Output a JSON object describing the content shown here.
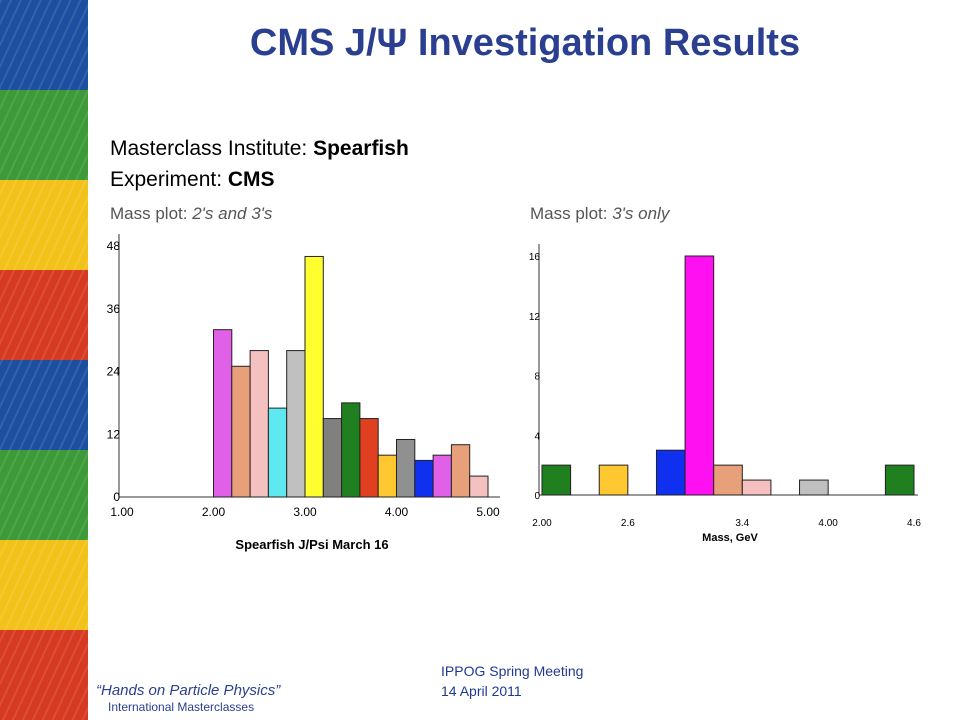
{
  "slide": {
    "title": "CMS J/Ψ Investigation Results",
    "institute_label": "Masterclass Institute: ",
    "institute_value": "Spearfish",
    "experiment_label": "Experiment: ",
    "experiment_value": "CMS",
    "footer_brand": "“Hands on Particle Physics”",
    "footer_brand_sub": "International Masterclasses",
    "footer_meeting": "IPPOG Spring Meeting",
    "footer_date": "14 April 2011"
  },
  "colors": {
    "title": "#2a3f8f",
    "strip": [
      "#1d4fa0",
      "#3d9a38",
      "#f2c21a",
      "#d73a22",
      "#1d4fa0",
      "#3d9a38",
      "#f2c21a",
      "#d73a22"
    ]
  },
  "chart_data": [
    {
      "type": "bar",
      "label_prefix": "Mass plot: ",
      "label_italic": "2's and 3's",
      "xlabel": "Spearfish J/Psi March 16",
      "x_ticks": [
        "1.00",
        "2.00",
        "3.00",
        "4.00",
        "5.00"
      ],
      "x_tick_values": [
        1.0,
        2.0,
        3.0,
        4.0,
        5.0
      ],
      "y_ticks": [
        "0",
        "12",
        "24",
        "36",
        "48"
      ],
      "y_tick_values": [
        0,
        12,
        24,
        36,
        48
      ],
      "xlim": [
        1.0,
        5.0
      ],
      "ylim": [
        0,
        48
      ],
      "bin_width": 0.2,
      "bins": [
        {
          "x": 2.0,
          "value": 32,
          "color": "#e060e8"
        },
        {
          "x": 2.2,
          "value": 25,
          "color": "#e8a07a"
        },
        {
          "x": 2.4,
          "value": 28,
          "color": "#f4c0c0"
        },
        {
          "x": 2.6,
          "value": 17,
          "color": "#5ee8f0"
        },
        {
          "x": 2.8,
          "value": 28,
          "color": "#c0c0c0"
        },
        {
          "x": 3.0,
          "value": 46,
          "color": "#ffff30"
        },
        {
          "x": 3.2,
          "value": 15,
          "color": "#808080"
        },
        {
          "x": 3.4,
          "value": 18,
          "color": "#208020"
        },
        {
          "x": 3.6,
          "value": 15,
          "color": "#e04020"
        },
        {
          "x": 3.8,
          "value": 8,
          "color": "#ffc830"
        },
        {
          "x": 4.0,
          "value": 11,
          "color": "#909090"
        },
        {
          "x": 4.2,
          "value": 7,
          "color": "#1030f0"
        },
        {
          "x": 4.4,
          "value": 8,
          "color": "#e060e8"
        },
        {
          "x": 4.6,
          "value": 10,
          "color": "#e8a07a"
        },
        {
          "x": 4.8,
          "value": 4,
          "color": "#f4c0c0"
        }
      ]
    },
    {
      "type": "bar",
      "label_prefix": "Mass plot: ",
      "label_italic": "3's only",
      "xlabel": "Mass, GeV",
      "x_ticks": [
        "2.00",
        "2.6",
        "3.4",
        "4.00",
        "4.6"
      ],
      "x_tick_values": [
        2.0,
        2.6,
        3.4,
        4.0,
        4.6
      ],
      "y_ticks": [
        "0",
        "4",
        "8",
        "12",
        "16"
      ],
      "y_tick_values": [
        0,
        4,
        8,
        12,
        16
      ],
      "xlim": [
        2.0,
        4.6
      ],
      "ylim": [
        0,
        16
      ],
      "bin_width": 0.2,
      "bins": [
        {
          "x": 2.0,
          "value": 2,
          "color": "#208020"
        },
        {
          "x": 2.4,
          "value": 2,
          "color": "#ffc830"
        },
        {
          "x": 2.8,
          "value": 3,
          "color": "#1030f0"
        },
        {
          "x": 3.0,
          "value": 16,
          "color": "#ff10f0"
        },
        {
          "x": 3.2,
          "value": 2,
          "color": "#e8a07a"
        },
        {
          "x": 3.4,
          "value": 1,
          "color": "#f4c0c0"
        },
        {
          "x": 3.8,
          "value": 1,
          "color": "#c0c0c0"
        },
        {
          "x": 4.4,
          "value": 2,
          "color": "#208020"
        }
      ]
    }
  ]
}
